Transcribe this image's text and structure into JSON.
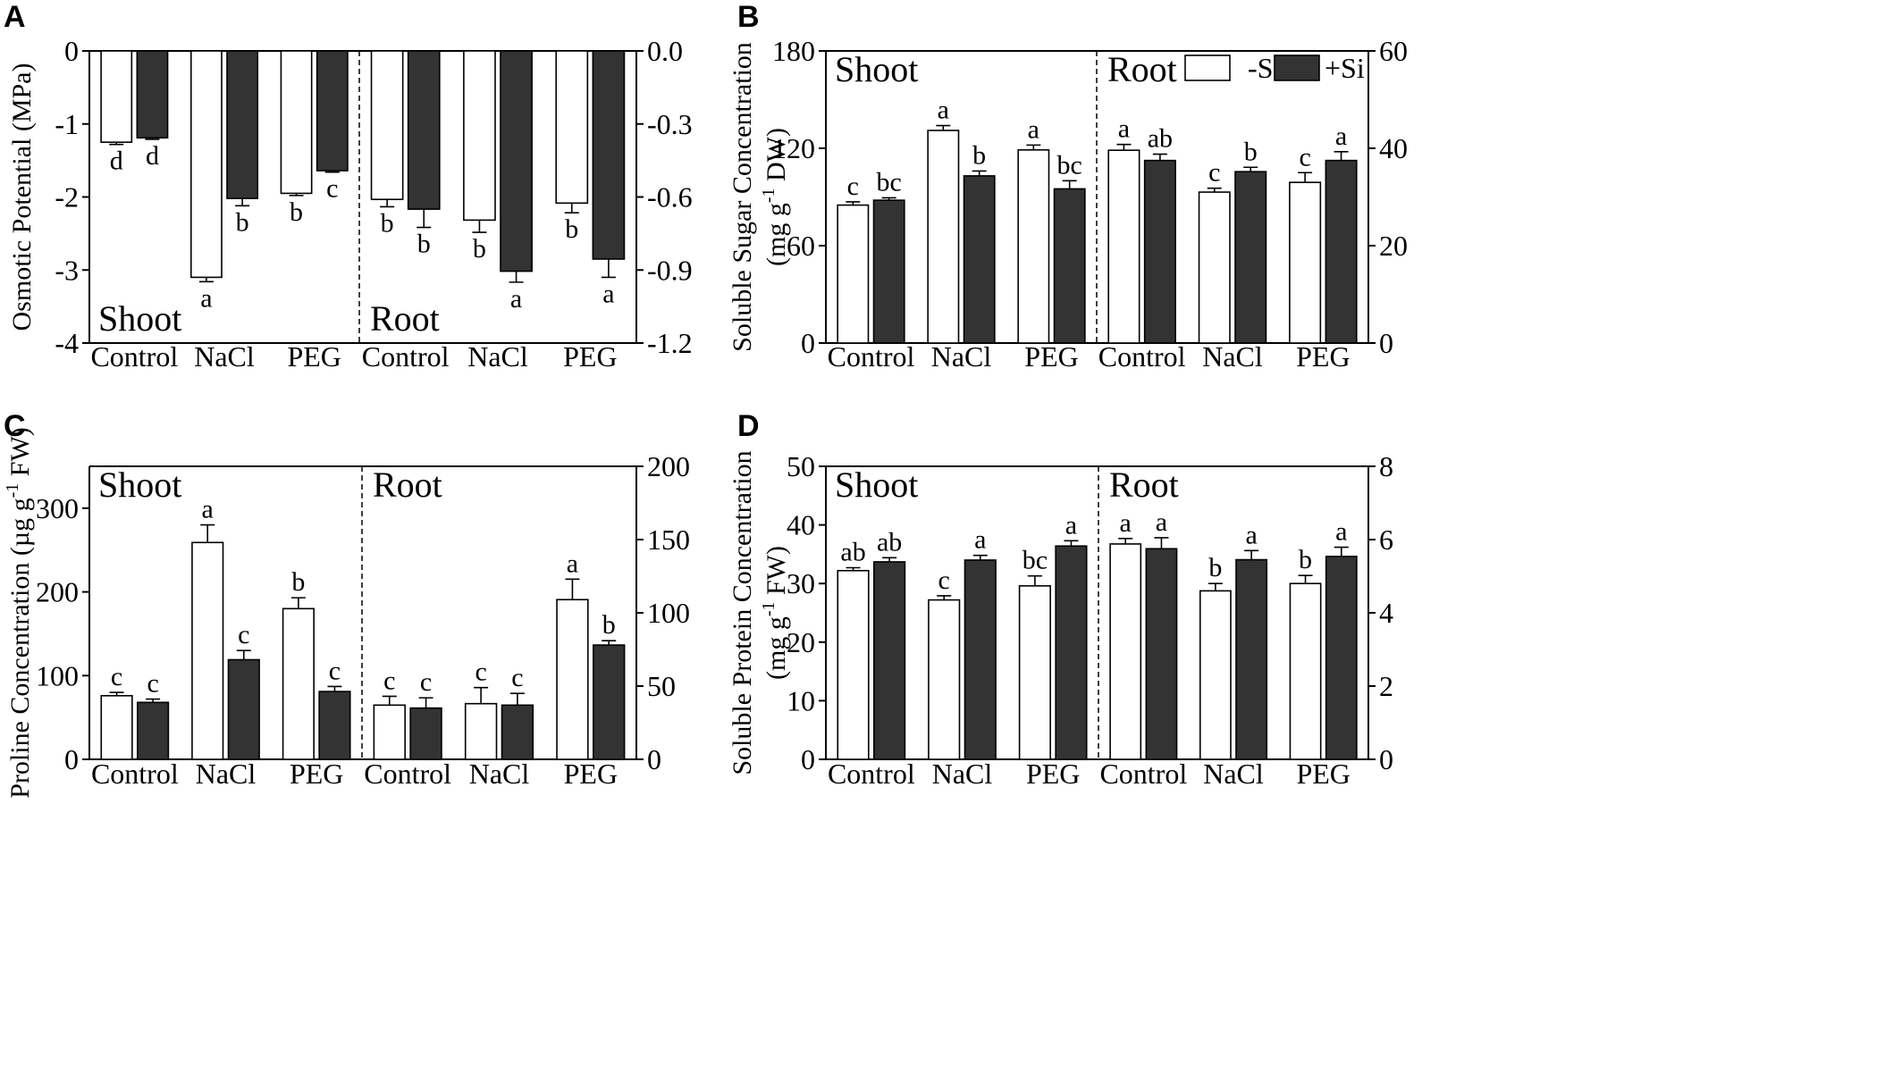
{
  "colors": {
    "minus_si": "#ffffff",
    "plus_si": "#333333",
    "stroke": "#000000"
  },
  "legend": {
    "minus_si": "-Si",
    "plus_si": "+Si"
  },
  "chart_data": [
    {
      "panel": "A",
      "type": "bar",
      "ylabel": "Osmotic Potential (MPa)",
      "categories": [
        "Control",
        "NaCl",
        "PEG"
      ],
      "left": {
        "region": "Shoot",
        "ylim": [
          -4,
          0
        ],
        "ticks": [
          0,
          -1,
          -2,
          -3,
          -4
        ],
        "tick_labels": [
          "0",
          "-1",
          "-2",
          "-3",
          "-4"
        ],
        "series": [
          {
            "name": "-Si",
            "values": [
              -1.25,
              -3.1,
              -1.95
            ],
            "errors": [
              0.03,
              0.06,
              0.03
            ],
            "letters": [
              "d",
              "a",
              "b"
            ]
          },
          {
            "name": "+Si",
            "values": [
              -1.19,
              -2.02,
              -1.64
            ],
            "errors": [
              0.02,
              0.1,
              0.02
            ],
            "letters": [
              "d",
              "b",
              "c"
            ]
          }
        ]
      },
      "right": {
        "region": "Root",
        "ylim": [
          -1.2,
          0
        ],
        "ticks": [
          0,
          -0.3,
          -0.6,
          -0.9,
          -1.2
        ],
        "tick_labels": [
          "0.0",
          "-0.3",
          "-0.6",
          "-0.9",
          "-1.2"
        ],
        "series": [
          {
            "name": "-Si",
            "values": [
              -0.61,
              -0.695,
              -0.625
            ],
            "errors": [
              0.03,
              0.05,
              0.04
            ],
            "letters": [
              "b",
              "b",
              "b"
            ]
          },
          {
            "name": "+Si",
            "values": [
              -0.65,
              -0.905,
              -0.855
            ],
            "errors": [
              0.075,
              0.045,
              0.075
            ],
            "letters": [
              "b",
              "a",
              "a"
            ]
          }
        ]
      }
    },
    {
      "panel": "B",
      "type": "bar",
      "ylabel": "Soluble Sugar Concentration (mg g-1 DW)",
      "ylabel_line1": "Soluble Sugar Concentration",
      "ylabel_line2_pre": "(mg g",
      "ylabel_sup": "-1",
      "ylabel_line2_post": " DW)",
      "categories": [
        "Control",
        "NaCl",
        "PEG"
      ],
      "left": {
        "region": "Shoot",
        "ylim": [
          0,
          180
        ],
        "ticks": [
          0,
          60,
          120,
          180
        ],
        "tick_labels": [
          "0",
          "60",
          "120",
          "180"
        ],
        "series": [
          {
            "name": "-Si",
            "values": [
              85,
              131,
              119
            ],
            "errors": [
              2,
              3,
              3
            ],
            "letters": [
              "c",
              "a",
              "a"
            ]
          },
          {
            "name": "+Si",
            "values": [
              88,
              103,
              95
            ],
            "errors": [
              1.5,
              3,
              5
            ],
            "letters": [
              "bc",
              "b",
              "bc"
            ]
          }
        ]
      },
      "right": {
        "region": "Root",
        "ylim": [
          0,
          60
        ],
        "ticks": [
          0,
          20,
          40,
          60
        ],
        "tick_labels": [
          "0",
          "20",
          "40",
          "60"
        ],
        "series": [
          {
            "name": "-Si",
            "values": [
              39.6,
              31,
              33
            ],
            "errors": [
              1.2,
              0.8,
              2
            ],
            "letters": [
              "a",
              "c",
              "c"
            ]
          },
          {
            "name": "+Si",
            "values": [
              37.5,
              35.2,
              37.5
            ],
            "errors": [
              1.3,
              0.9,
              1.8
            ],
            "letters": [
              "ab",
              "b",
              "a"
            ]
          }
        ]
      }
    },
    {
      "panel": "C",
      "type": "bar",
      "ylabel": "Proline Concentration (µg g-1 FW)",
      "ylabel_line1": "",
      "ylabel_line2_pre": "Proline Concentration (µg g",
      "ylabel_sup": "-1",
      "ylabel_line2_post": " FW)",
      "categories": [
        "Control",
        "NaCl",
        "PEG"
      ],
      "left": {
        "region": "Shoot",
        "ylim": [
          0,
          350
        ],
        "ticks": [
          0,
          100,
          200,
          300
        ],
        "tick_labels": [
          "0",
          "100",
          "200",
          "300"
        ],
        "series": [
          {
            "name": "-Si",
            "values": [
              76,
              259,
              180
            ],
            "errors": [
              4,
              21,
              13
            ],
            "letters": [
              "c",
              "a",
              "b"
            ]
          },
          {
            "name": "+Si",
            "values": [
              68,
              119,
              81
            ],
            "errors": [
              4,
              11,
              6
            ],
            "letters": [
              "c",
              "c",
              "c"
            ]
          }
        ]
      },
      "right": {
        "region": "Root",
        "ylim": [
          0,
          200
        ],
        "ticks": [
          0,
          50,
          100,
          150,
          200
        ],
        "tick_labels": [
          "0",
          "50",
          "100",
          "150",
          "200"
        ],
        "series": [
          {
            "name": "-Si",
            "values": [
              37,
              38,
              109
            ],
            "errors": [
              6,
              11,
              14
            ],
            "letters": [
              "c",
              "c",
              "a"
            ]
          },
          {
            "name": "+Si",
            "values": [
              35,
              37,
              78
            ],
            "errors": [
              7,
              8,
              3
            ],
            "letters": [
              "c",
              "c",
              "b"
            ]
          }
        ]
      }
    },
    {
      "panel": "D",
      "type": "bar",
      "ylabel": "Soluble Protein Concentration (mg g-1 FW)",
      "ylabel_line1": "Soluble Protein Concentration",
      "ylabel_line2_pre": "(mg g",
      "ylabel_sup": "-1",
      "ylabel_line2_post": " FW)",
      "categories": [
        "Control",
        "NaCl",
        "PEG"
      ],
      "left": {
        "region": "Shoot",
        "ylim": [
          0,
          50
        ],
        "ticks": [
          0,
          10,
          20,
          30,
          40,
          50
        ],
        "tick_labels": [
          "0",
          "10",
          "20",
          "30",
          "40",
          "50"
        ],
        "series": [
          {
            "name": "-Si",
            "values": [
              32.2,
              27.2,
              29.6
            ],
            "errors": [
              0.5,
              0.7,
              1.7
            ],
            "letters": [
              "ab",
              "c",
              "bc"
            ]
          },
          {
            "name": "+Si",
            "values": [
              33.7,
              34.0,
              36.4
            ],
            "errors": [
              0.7,
              0.8,
              0.9
            ],
            "letters": [
              "ab",
              "a",
              "a"
            ]
          }
        ]
      },
      "right": {
        "region": "Root",
        "ylim": [
          0,
          8
        ],
        "ticks": [
          0,
          2,
          4,
          6,
          8
        ],
        "tick_labels": [
          "0",
          "2",
          "4",
          "6",
          "8"
        ],
        "series": [
          {
            "name": "-Si",
            "values": [
              5.88,
              4.6,
              4.8
            ],
            "errors": [
              0.15,
              0.2,
              0.22
            ],
            "letters": [
              "a",
              "b",
              "b"
            ]
          },
          {
            "name": "+Si",
            "values": [
              5.75,
              5.45,
              5.54
            ],
            "errors": [
              0.3,
              0.25,
              0.25
            ],
            "letters": [
              "a",
              "a",
              "a"
            ]
          }
        ]
      }
    }
  ]
}
